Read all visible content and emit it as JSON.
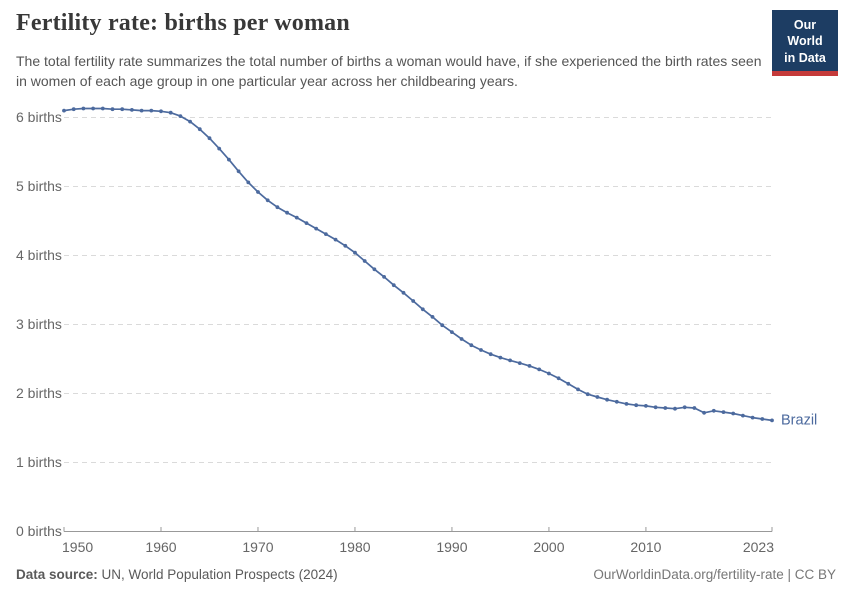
{
  "header": {
    "title": "Fertility rate: births per woman",
    "subtitle": "The total fertility rate summarizes the total number of births a woman would have, if she experienced the birth rates seen in women of each age group in one particular year across her childbearing years.",
    "logo_line1": "Our World",
    "logo_line2": "in Data"
  },
  "chart_data": {
    "type": "line",
    "title": "Fertility rate: births per woman",
    "entity": "Brazil",
    "line_color": "#4c6a9e",
    "grid": "horizontal-dashed",
    "legend": "end-of-line-label",
    "xlim": [
      1950,
      2023
    ],
    "ylim": [
      0,
      6.3
    ],
    "x_ticks": [
      1950,
      1960,
      1970,
      1980,
      1990,
      2000,
      2010,
      2023
    ],
    "x_tick_labels": [
      "1950",
      "1960",
      "1970",
      "1980",
      "1990",
      "2000",
      "2010",
      "2023"
    ],
    "y_ticks": [
      0,
      1,
      2,
      3,
      4,
      5,
      6
    ],
    "y_tick_labels": [
      "0 births",
      "1 births",
      "2 births",
      "3 births",
      "4 births",
      "5 births",
      "6 births"
    ],
    "series": [
      {
        "name": "Brazil",
        "color": "#4c6a9e",
        "x": [
          1950,
          1951,
          1952,
          1953,
          1954,
          1955,
          1956,
          1957,
          1958,
          1959,
          1960,
          1961,
          1962,
          1963,
          1964,
          1965,
          1966,
          1967,
          1968,
          1969,
          1970,
          1971,
          1972,
          1973,
          1974,
          1975,
          1976,
          1977,
          1978,
          1979,
          1980,
          1981,
          1982,
          1983,
          1984,
          1985,
          1986,
          1987,
          1988,
          1989,
          1990,
          1991,
          1992,
          1993,
          1994,
          1995,
          1996,
          1997,
          1998,
          1999,
          2000,
          2001,
          2002,
          2003,
          2004,
          2005,
          2006,
          2007,
          2008,
          2009,
          2010,
          2011,
          2012,
          2013,
          2014,
          2015,
          2016,
          2017,
          2018,
          2019,
          2020,
          2021,
          2022,
          2023
        ],
        "values": [
          6.1,
          6.12,
          6.13,
          6.13,
          6.13,
          6.12,
          6.12,
          6.11,
          6.1,
          6.1,
          6.09,
          6.07,
          6.02,
          5.94,
          5.83,
          5.7,
          5.55,
          5.39,
          5.22,
          5.06,
          4.92,
          4.8,
          4.7,
          4.62,
          4.55,
          4.47,
          4.39,
          4.31,
          4.23,
          4.14,
          4.04,
          3.92,
          3.8,
          3.69,
          3.57,
          3.46,
          3.34,
          3.22,
          3.11,
          2.99,
          2.89,
          2.79,
          2.7,
          2.63,
          2.57,
          2.52,
          2.48,
          2.44,
          2.4,
          2.35,
          2.29,
          2.22,
          2.14,
          2.06,
          1.99,
          1.95,
          1.91,
          1.88,
          1.85,
          1.83,
          1.82,
          1.8,
          1.79,
          1.78,
          1.8,
          1.79,
          1.72,
          1.75,
          1.73,
          1.71,
          1.68,
          1.65,
          1.63,
          1.61
        ]
      }
    ]
  },
  "footer": {
    "source_label": "Data source:",
    "source_text": "UN, World Population Prospects (2024)",
    "attribution": "OurWorldinData.org/fertility-rate | CC BY"
  },
  "colors": {
    "line": "#4c6a9e",
    "gridline": "#dadada",
    "axis": "#999999",
    "tick_text": "#666666",
    "logo_bg": "#1d3d63",
    "logo_bar": "#c53a3a"
  }
}
